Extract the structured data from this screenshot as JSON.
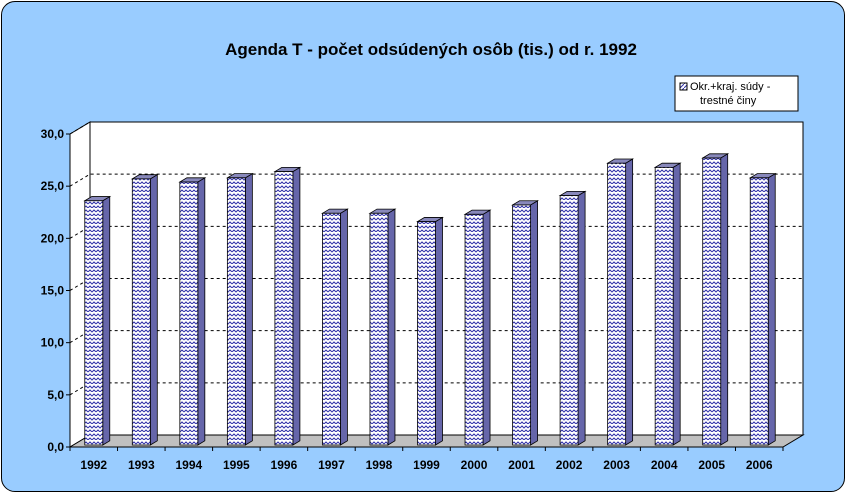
{
  "chart_data": {
    "type": "bar",
    "title": "Agenda T - počet odsúdených osôb (tis.) od r. 1992",
    "categories": [
      "1992",
      "1993",
      "1994",
      "1995",
      "1996",
      "1997",
      "1998",
      "1999",
      "2000",
      "2001",
      "2002",
      "2003",
      "2004",
      "2005",
      "2006"
    ],
    "series": [
      {
        "name": "Okr.+kraj. súdy - trestné činy",
        "legend_lines": [
          "Okr.+kraj. súdy -",
          "trestné činy"
        ],
        "values": [
          23.6,
          25.7,
          25.4,
          25.8,
          26.4,
          22.4,
          22.4,
          21.6,
          22.3,
          23.2,
          24.1,
          27.2,
          26.8,
          27.7,
          25.8
        ],
        "color": "#3333aa"
      }
    ],
    "y_ticks": [
      "0,0",
      "5,0",
      "10,0",
      "15,0",
      "20,0",
      "25,0",
      "30,0"
    ],
    "ylim": [
      0,
      30
    ],
    "y_step": 5,
    "grid": true,
    "legend_position": "top-right",
    "background_color": "#99ccff",
    "plot_color": "#ffffff",
    "floor_color": "#c0c0c0"
  }
}
